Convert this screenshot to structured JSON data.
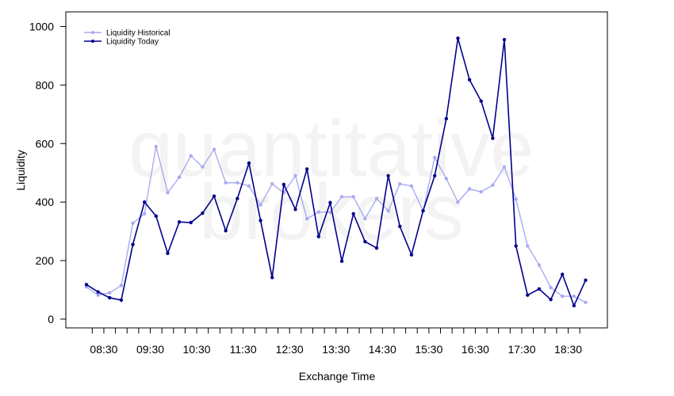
{
  "watermark": {
    "line1": "quantitative",
    "line2": "brokers"
  },
  "chart_data": {
    "type": "line",
    "title": "",
    "xlabel": "Exchange Time",
    "ylabel": "Liquidity",
    "ylim": [
      -30,
      1050
    ],
    "yticks": [
      0,
      200,
      400,
      600,
      800,
      1000
    ],
    "x": [
      "08:15",
      "08:30",
      "08:45",
      "09:00",
      "09:15",
      "09:30",
      "09:45",
      "10:00",
      "10:15",
      "10:30",
      "10:45",
      "11:00",
      "11:15",
      "11:30",
      "11:45",
      "12:00",
      "12:15",
      "12:30",
      "12:45",
      "13:00",
      "13:15",
      "13:30",
      "13:45",
      "14:00",
      "14:15",
      "14:30",
      "14:45",
      "15:00",
      "15:15",
      "15:30",
      "15:45",
      "16:00",
      "16:15",
      "16:30",
      "16:45",
      "17:00",
      "17:15",
      "17:30",
      "17:45",
      "18:00",
      "18:15",
      "18:30",
      "18:45",
      "19:00"
    ],
    "xtick_labels": [
      "08:30",
      "09:30",
      "10:30",
      "11:30",
      "12:30",
      "13:30",
      "14:30",
      "15:30",
      "16:30",
      "17:30",
      "18:30"
    ],
    "legend_position": "top-left",
    "grid": false,
    "series": [
      {
        "name": "Liquidity Historical",
        "color": "#aaaaf0",
        "values": [
          110,
          82,
          90,
          115,
          328,
          360,
          590,
          432,
          485,
          558,
          520,
          580,
          466,
          466,
          455,
          390,
          462,
          432,
          490,
          343,
          366,
          365,
          418,
          418,
          343,
          412,
          370,
          462,
          455,
          370,
          552,
          480,
          400,
          445,
          435,
          458,
          520,
          410,
          250,
          185,
          108,
          78,
          78,
          57
        ]
      },
      {
        "name": "Liquidity Today",
        "color": "#00008b",
        "values": [
          118,
          93,
          73,
          65,
          255,
          400,
          352,
          225,
          332,
          330,
          362,
          420,
          302,
          412,
          533,
          337,
          142,
          460,
          375,
          513,
          282,
          398,
          198,
          360,
          265,
          243,
          490,
          317,
          220,
          370,
          490,
          685,
          960,
          818,
          745,
          618,
          955,
          250,
          82,
          103,
          67,
          153,
          46,
          133
        ]
      }
    ]
  }
}
